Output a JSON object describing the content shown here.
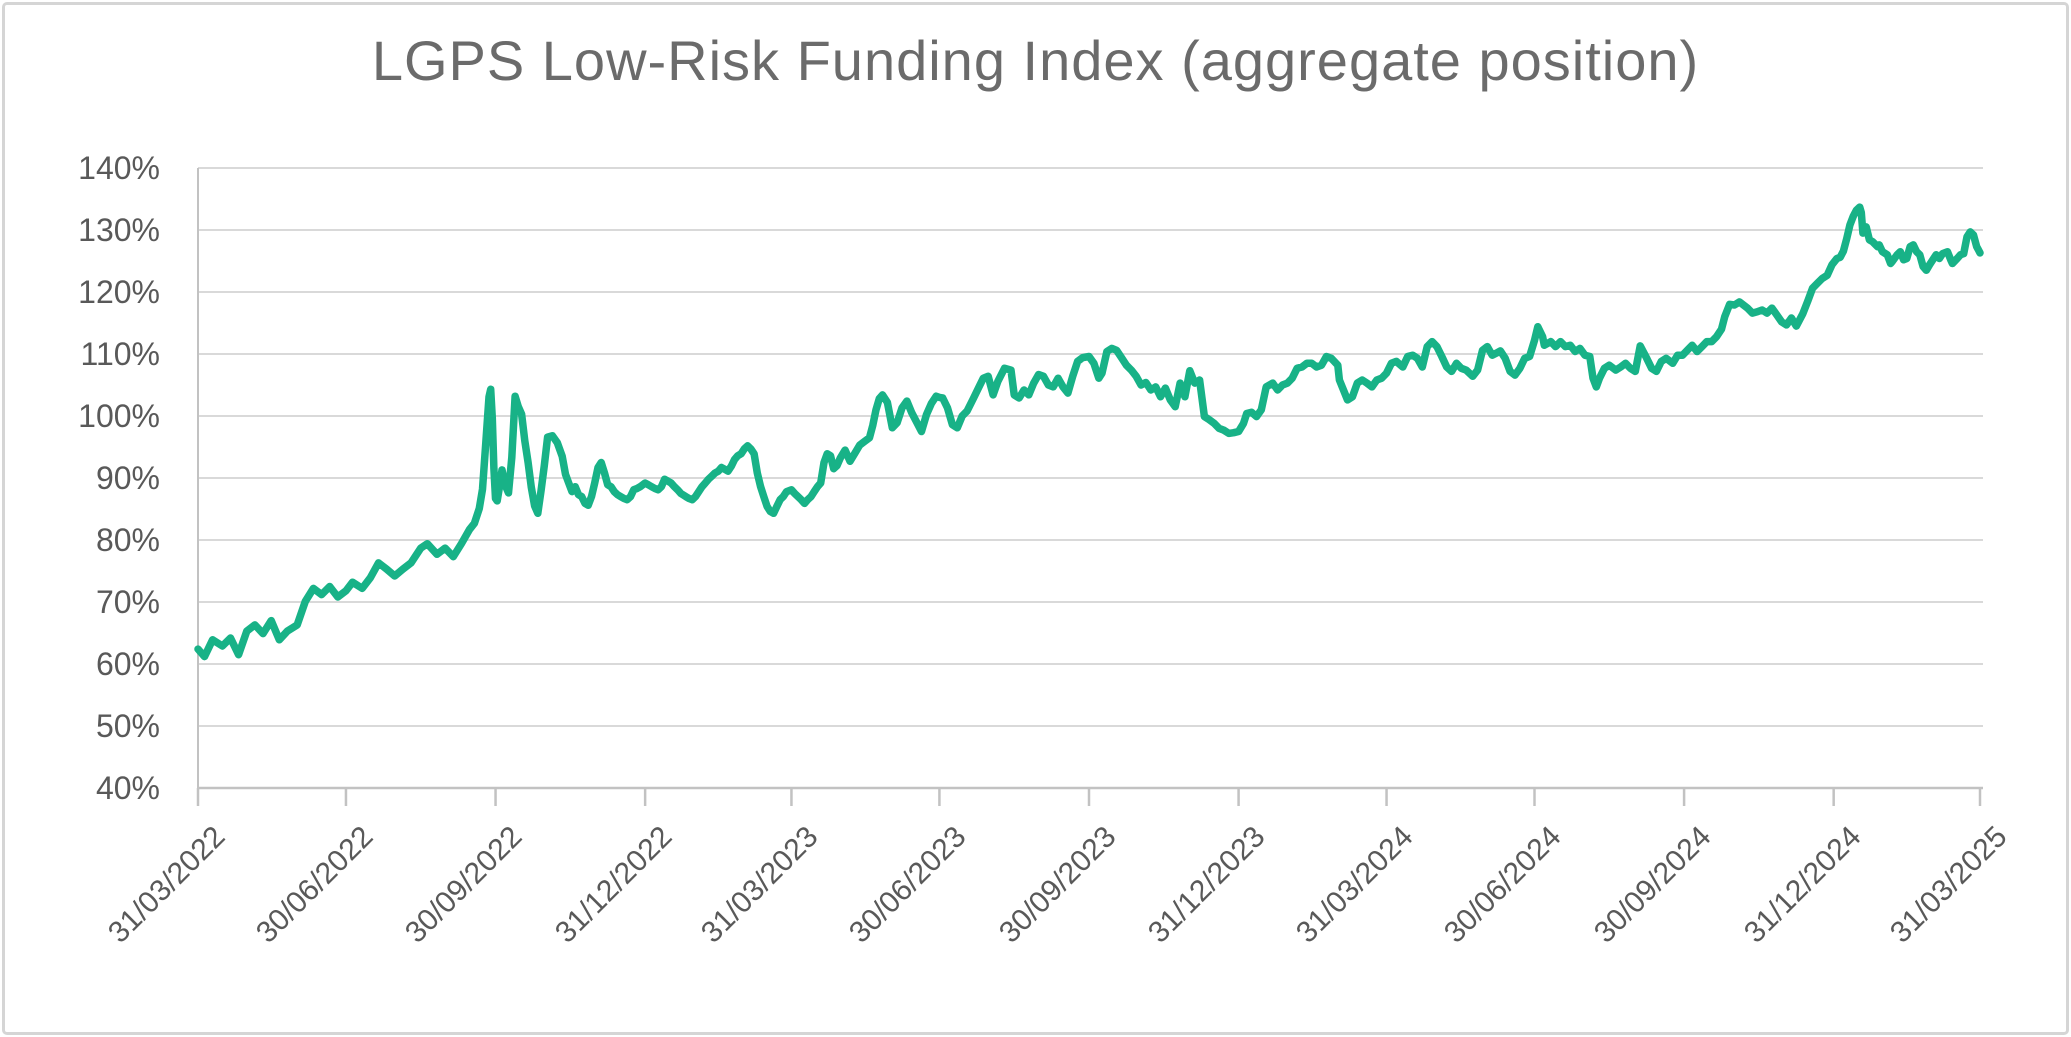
{
  "page": {
    "background": "#ffffff",
    "frame_border_color": "#d5d5d5"
  },
  "chart_data": {
    "type": "line",
    "title": "LGPS Low-Risk Funding Index (aggregate position)",
    "title_color": "#6b6b6b",
    "line_color": "#18b287",
    "grid_color": "#d9d9d9",
    "axis_color": "#c2c2c2",
    "tick_label_color": "#595959",
    "grid": "horizontal",
    "legend_position": "none",
    "ylim": [
      40,
      140
    ],
    "y_tick_values": [
      140,
      130,
      120,
      110,
      100,
      90,
      80,
      70,
      60,
      50,
      40
    ],
    "y_tick_labels": [
      "140%",
      "130%",
      "120%",
      "110%",
      "100%",
      "90%",
      "80%",
      "70%",
      "60%",
      "50%",
      "40%"
    ],
    "x_tick_labels": [
      "31/03/2022",
      "30/06/2022",
      "30/09/2022",
      "31/12/2022",
      "31/03/2023",
      "30/06/2023",
      "30/09/2023",
      "31/12/2023",
      "31/03/2024",
      "30/06/2024",
      "30/09/2024",
      "31/12/2024",
      "31/03/2025"
    ],
    "x_tick_days": [
      0,
      91,
      183,
      275,
      365,
      456,
      548,
      640,
      731,
      822,
      914,
      1006,
      1096
    ],
    "x_range_days": [
      0,
      1096
    ],
    "x_unit": "days since 31/03/2022",
    "points": [
      [
        0,
        62.4
      ],
      [
        4,
        61.2
      ],
      [
        9,
        63.9
      ],
      [
        15,
        62.9
      ],
      [
        20,
        64.2
      ],
      [
        25,
        61.5
      ],
      [
        30,
        65.3
      ],
      [
        35,
        66.3
      ],
      [
        40,
        64.9
      ],
      [
        45,
        67
      ],
      [
        50,
        63.9
      ],
      [
        55,
        65.3
      ],
      [
        61,
        66.3
      ],
      [
        66,
        70.1
      ],
      [
        71,
        72.2
      ],
      [
        76,
        71.2
      ],
      [
        81,
        72.5
      ],
      [
        86,
        70.8
      ],
      [
        91,
        71.8
      ],
      [
        95,
        73.2
      ],
      [
        101,
        72.2
      ],
      [
        106,
        73.9
      ],
      [
        111,
        76.3
      ],
      [
        116,
        75.3
      ],
      [
        121,
        74.2
      ],
      [
        126,
        75.3
      ],
      [
        131,
        76.3
      ],
      [
        137,
        78.7
      ],
      [
        141,
        79.4
      ],
      [
        147,
        77.7
      ],
      [
        152,
        78.7
      ],
      [
        157,
        77.3
      ],
      [
        162,
        79.4
      ],
      [
        167,
        81.7
      ],
      [
        170,
        82.7
      ],
      [
        173,
        85.1
      ],
      [
        175,
        88.2
      ],
      [
        177,
        95.7
      ],
      [
        179,
        103.1
      ],
      [
        180,
        104.3
      ],
      [
        181,
        99.7
      ],
      [
        182,
        91.5
      ],
      [
        183,
        86.7
      ],
      [
        184,
        86.3
      ],
      [
        186,
        89.5
      ],
      [
        187,
        91.3
      ],
      [
        189,
        88.8
      ],
      [
        191,
        87.6
      ],
      [
        193,
        93.3
      ],
      [
        195,
        103.2
      ],
      [
        197,
        101.5
      ],
      [
        199,
        100.3
      ],
      [
        201,
        96
      ],
      [
        203,
        92.5
      ],
      [
        205,
        88.5
      ],
      [
        207,
        85.5
      ],
      [
        209,
        84.3
      ],
      [
        211,
        88
      ],
      [
        213,
        92
      ],
      [
        215,
        96.6
      ],
      [
        218,
        96.8
      ],
      [
        221,
        95.7
      ],
      [
        224,
        93.5
      ],
      [
        226,
        90.6
      ],
      [
        228,
        89.2
      ],
      [
        230,
        87.8
      ],
      [
        232,
        88.6
      ],
      [
        234,
        87.3
      ],
      [
        236,
        87
      ],
      [
        238,
        85.9
      ],
      [
        240,
        85.6
      ],
      [
        242,
        87
      ],
      [
        244,
        89.2
      ],
      [
        246,
        91.7
      ],
      [
        248,
        92.5
      ],
      [
        250,
        90.8
      ],
      [
        252,
        88.9
      ],
      [
        254,
        88.6
      ],
      [
        256,
        87.8
      ],
      [
        258,
        87.3
      ],
      [
        260,
        87
      ],
      [
        262,
        86.7
      ],
      [
        264,
        86.5
      ],
      [
        266,
        87
      ],
      [
        268,
        88.1
      ],
      [
        270,
        88.3
      ],
      [
        272,
        88.6
      ],
      [
        275,
        89.2
      ],
      [
        277,
        88.9
      ],
      [
        279,
        88.6
      ],
      [
        281,
        88.3
      ],
      [
        283,
        88.1
      ],
      [
        285,
        88.6
      ],
      [
        287,
        89.8
      ],
      [
        289,
        89.5
      ],
      [
        291,
        89.2
      ],
      [
        293,
        88.6
      ],
      [
        295,
        88.1
      ],
      [
        297,
        87.5
      ],
      [
        300,
        87
      ],
      [
        302,
        86.7
      ],
      [
        304,
        86.5
      ],
      [
        306,
        87
      ],
      [
        308,
        87.8
      ],
      [
        310,
        88.6
      ],
      [
        312,
        89.2
      ],
      [
        314,
        89.8
      ],
      [
        316,
        90.3
      ],
      [
        318,
        90.8
      ],
      [
        320,
        91.1
      ],
      [
        322,
        91.7
      ],
      [
        324,
        91.4
      ],
      [
        326,
        91.1
      ],
      [
        328,
        91.9
      ],
      [
        330,
        93
      ],
      [
        332,
        93.6
      ],
      [
        334,
        93.9
      ],
      [
        336,
        94.7
      ],
      [
        338,
        95.2
      ],
      [
        340,
        94.7
      ],
      [
        342,
        93.9
      ],
      [
        344,
        90.8
      ],
      [
        346,
        88.6
      ],
      [
        348,
        87
      ],
      [
        350,
        85.4
      ],
      [
        352,
        84.6
      ],
      [
        354,
        84.3
      ],
      [
        356,
        85.4
      ],
      [
        358,
        86.5
      ],
      [
        360,
        87
      ],
      [
        362,
        87.8
      ],
      [
        365,
        88.1
      ],
      [
        367,
        87.5
      ],
      [
        369,
        87
      ],
      [
        371,
        86.5
      ],
      [
        373,
        85.9
      ],
      [
        375,
        86.5
      ],
      [
        377,
        87
      ],
      [
        379,
        87.8
      ],
      [
        381,
        88.6
      ],
      [
        383,
        89.2
      ],
      [
        385,
        92.5
      ],
      [
        387,
        93.9
      ],
      [
        389,
        93.6
      ],
      [
        391,
        91.5
      ],
      [
        393,
        92
      ],
      [
        395,
        93.2
      ],
      [
        398,
        94.5
      ],
      [
        401,
        92.7
      ],
      [
        404,
        94
      ],
      [
        407,
        95.3
      ],
      [
        410,
        95.9
      ],
      [
        413,
        96.5
      ],
      [
        415,
        98.5
      ],
      [
        417,
        101
      ],
      [
        419,
        102.8
      ],
      [
        421,
        103.4
      ],
      [
        424,
        102.2
      ],
      [
        427,
        98.1
      ],
      [
        430,
        98.9
      ],
      [
        433,
        101.3
      ],
      [
        436,
        102.4
      ],
      [
        439,
        100.5
      ],
      [
        442,
        99
      ],
      [
        445,
        97.5
      ],
      [
        448,
        100.2
      ],
      [
        451,
        102
      ],
      [
        454,
        103.2
      ],
      [
        456,
        103
      ],
      [
        458,
        102.9
      ],
      [
        461,
        101.3
      ],
      [
        464,
        98.6
      ],
      [
        467,
        98.1
      ],
      [
        470,
        100
      ],
      [
        473,
        100.8
      ],
      [
        477,
        102.9
      ],
      [
        480,
        104.5
      ],
      [
        483,
        106.1
      ],
      [
        486,
        106.4
      ],
      [
        489,
        103.4
      ],
      [
        492,
        105.6
      ],
      [
        496,
        107.7
      ],
      [
        500,
        107.4
      ],
      [
        502,
        103.4
      ],
      [
        505,
        102.9
      ],
      [
        508,
        104.2
      ],
      [
        511,
        103.4
      ],
      [
        514,
        105.3
      ],
      [
        517,
        106.7
      ],
      [
        520,
        106.4
      ],
      [
        523,
        105
      ],
      [
        526,
        104.7
      ],
      [
        529,
        106.1
      ],
      [
        532,
        104.7
      ],
      [
        535,
        103.7
      ],
      [
        538,
        106.4
      ],
      [
        541,
        108.8
      ],
      [
        544,
        109.4
      ],
      [
        548,
        109.6
      ],
      [
        551,
        108.5
      ],
      [
        554,
        106.1
      ],
      [
        556,
        106.9
      ],
      [
        559,
        110.4
      ],
      [
        562,
        110.9
      ],
      [
        565,
        110.6
      ],
      [
        568,
        109.4
      ],
      [
        571,
        108.2
      ],
      [
        574,
        107.4
      ],
      [
        577,
        106.4
      ],
      [
        580,
        105
      ],
      [
        583,
        105.4
      ],
      [
        586,
        104.2
      ],
      [
        589,
        104.7
      ],
      [
        592,
        103.1
      ],
      [
        595,
        104.5
      ],
      [
        598,
        102.6
      ],
      [
        601,
        101.5
      ],
      [
        604,
        105.3
      ],
      [
        607,
        103.1
      ],
      [
        610,
        107.3
      ],
      [
        613,
        105.3
      ],
      [
        616,
        105.8
      ],
      [
        619,
        99.9
      ],
      [
        622,
        99.4
      ],
      [
        625,
        98.8
      ],
      [
        628,
        98
      ],
      [
        631,
        97.7
      ],
      [
        634,
        97.2
      ],
      [
        637,
        97.3
      ],
      [
        640,
        97.5
      ],
      [
        643,
        98.8
      ],
      [
        645,
        100.4
      ],
      [
        648,
        100.6
      ],
      [
        651,
        99.9
      ],
      [
        654,
        101
      ],
      [
        657,
        104.7
      ],
      [
        661,
        105.3
      ],
      [
        664,
        104.2
      ],
      [
        667,
        105
      ],
      [
        670,
        105.3
      ],
      [
        673,
        106.1
      ],
      [
        676,
        107.7
      ],
      [
        679,
        107.9
      ],
      [
        682,
        108.5
      ],
      [
        685,
        108.5
      ],
      [
        688,
        107.9
      ],
      [
        691,
        108.2
      ],
      [
        694,
        109.6
      ],
      [
        697,
        109.3
      ],
      [
        701,
        108.2
      ],
      [
        702,
        105.8
      ],
      [
        707,
        102.6
      ],
      [
        710,
        103.1
      ],
      [
        713,
        105.3
      ],
      [
        716,
        105.8
      ],
      [
        719,
        105.3
      ],
      [
        722,
        104.7
      ],
      [
        725,
        105.8
      ],
      [
        728,
        106.1
      ],
      [
        731,
        106.9
      ],
      [
        734,
        108.5
      ],
      [
        737,
        108.8
      ],
      [
        741,
        107.9
      ],
      [
        744,
        109.6
      ],
      [
        747,
        109.8
      ],
      [
        750,
        109.3
      ],
      [
        753,
        107.9
      ],
      [
        756,
        111.2
      ],
      [
        759,
        112
      ],
      [
        762,
        111.2
      ],
      [
        765,
        109.6
      ],
      [
        768,
        107.9
      ],
      [
        771,
        107.2
      ],
      [
        774,
        108.5
      ],
      [
        777,
        107.7
      ],
      [
        780,
        107.4
      ],
      [
        784,
        106.4
      ],
      [
        787,
        107.4
      ],
      [
        790,
        110.6
      ],
      [
        793,
        111.2
      ],
      [
        796,
        109.8
      ],
      [
        799,
        110.2
      ],
      [
        801,
        110.5
      ],
      [
        804,
        109.3
      ],
      [
        807,
        107.2
      ],
      [
        810,
        106.6
      ],
      [
        813,
        107.7
      ],
      [
        816,
        109.3
      ],
      [
        819,
        109.6
      ],
      [
        822,
        112.2
      ],
      [
        824,
        114.4
      ],
      [
        827,
        112.8
      ],
      [
        828,
        111.4
      ],
      [
        832,
        112
      ],
      [
        835,
        111.2
      ],
      [
        838,
        112
      ],
      [
        841,
        111.2
      ],
      [
        844,
        111.4
      ],
      [
        847,
        110.4
      ],
      [
        850,
        110.9
      ],
      [
        853,
        109.8
      ],
      [
        856,
        109.6
      ],
      [
        858,
        106.1
      ],
      [
        860,
        104.7
      ],
      [
        862,
        106.1
      ],
      [
        865,
        107.7
      ],
      [
        868,
        108.2
      ],
      [
        872,
        107.4
      ],
      [
        875,
        107.9
      ],
      [
        878,
        108.5
      ],
      [
        881,
        107.7
      ],
      [
        884,
        107.2
      ],
      [
        887,
        111.3
      ],
      [
        891,
        109.3
      ],
      [
        894,
        107.7
      ],
      [
        897,
        107.2
      ],
      [
        900,
        108.8
      ],
      [
        903,
        109.3
      ],
      [
        907,
        108.5
      ],
      [
        910,
        109.8
      ],
      [
        913,
        109.8
      ],
      [
        916,
        110.6
      ],
      [
        919,
        111.4
      ],
      [
        922,
        110.4
      ],
      [
        925,
        111.2
      ],
      [
        928,
        112
      ],
      [
        931,
        112
      ],
      [
        934,
        112.8
      ],
      [
        937,
        114
      ],
      [
        939,
        116
      ],
      [
        942,
        118
      ],
      [
        945,
        117.9
      ],
      [
        948,
        118.4
      ],
      [
        953,
        117.4
      ],
      [
        956,
        116.6
      ],
      [
        959,
        116.8
      ],
      [
        962,
        117.1
      ],
      [
        965,
        116.6
      ],
      [
        968,
        117.4
      ],
      [
        971,
        116.3
      ],
      [
        974,
        115.2
      ],
      [
        977,
        114.7
      ],
      [
        980,
        115.8
      ],
      [
        983,
        114.5
      ],
      [
        987,
        116.5
      ],
      [
        990,
        118.5
      ],
      [
        993,
        120.6
      ],
      [
        996,
        121.4
      ],
      [
        999,
        122.2
      ],
      [
        1002,
        122.7
      ],
      [
        1005,
        124.4
      ],
      [
        1008,
        125.4
      ],
      [
        1010,
        125.6
      ],
      [
        1012,
        126.6
      ],
      [
        1014,
        128.6
      ],
      [
        1016,
        130.8
      ],
      [
        1018,
        132.2
      ],
      [
        1020,
        133.2
      ],
      [
        1022,
        133.7
      ],
      [
        1023,
        132.8
      ],
      [
        1024,
        129.5
      ],
      [
        1026,
        130.5
      ],
      [
        1028,
        128.4
      ],
      [
        1030,
        128.1
      ],
      [
        1033,
        127.3
      ],
      [
        1034,
        127.6
      ],
      [
        1036,
        126.5
      ],
      [
        1039,
        126
      ],
      [
        1041,
        124.6
      ],
      [
        1042,
        124.9
      ],
      [
        1045,
        126
      ],
      [
        1047,
        126.5
      ],
      [
        1049,
        125.2
      ],
      [
        1051,
        125.4
      ],
      [
        1053,
        127.3
      ],
      [
        1055,
        127.6
      ],
      [
        1057,
        126.5
      ],
      [
        1059,
        126
      ],
      [
        1061,
        124.1
      ],
      [
        1063,
        123.5
      ],
      [
        1065,
        124.4
      ],
      [
        1067,
        125.2
      ],
      [
        1069,
        126
      ],
      [
        1071,
        125.4
      ],
      [
        1073,
        126.2
      ],
      [
        1076,
        126.5
      ],
      [
        1078,
        125.2
      ],
      [
        1079,
        124.6
      ],
      [
        1082,
        125.4
      ],
      [
        1084,
        126
      ],
      [
        1086,
        126.2
      ],
      [
        1088,
        128.9
      ],
      [
        1090,
        129.7
      ],
      [
        1092,
        129.2
      ],
      [
        1094,
        127.3
      ],
      [
        1095,
        126.8
      ],
      [
        1096,
        126.3
      ]
    ]
  }
}
